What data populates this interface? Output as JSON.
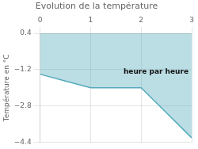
{
  "chart_data": {
    "type": "line",
    "title": "Evolution de la température",
    "ylabel": "Température en °C",
    "annotation": "heure par heure",
    "x": [
      0,
      0.5,
      1.0,
      1.5,
      2.0,
      2.5,
      3.0
    ],
    "series": [
      {
        "color": "#55aabb",
        "values": [
          -1.4,
          -1.7,
          -2.0,
          -2.0,
          -2.0,
          -3.1,
          -4.2
        ]
      }
    ],
    "xlim": [
      0,
      3
    ],
    "xticks": [
      0,
      1,
      2,
      3
    ],
    "ylim": [
      -4.4,
      0.4
    ],
    "yticks": [
      {
        "value": 0.4,
        "label": "0.4"
      },
      {
        "value": -1.2,
        "label": "−1.2"
      },
      {
        "value": -2.8,
        "label": "−2.8"
      },
      {
        "value": -4.4,
        "label": "−4.4"
      }
    ],
    "grid": true
  }
}
